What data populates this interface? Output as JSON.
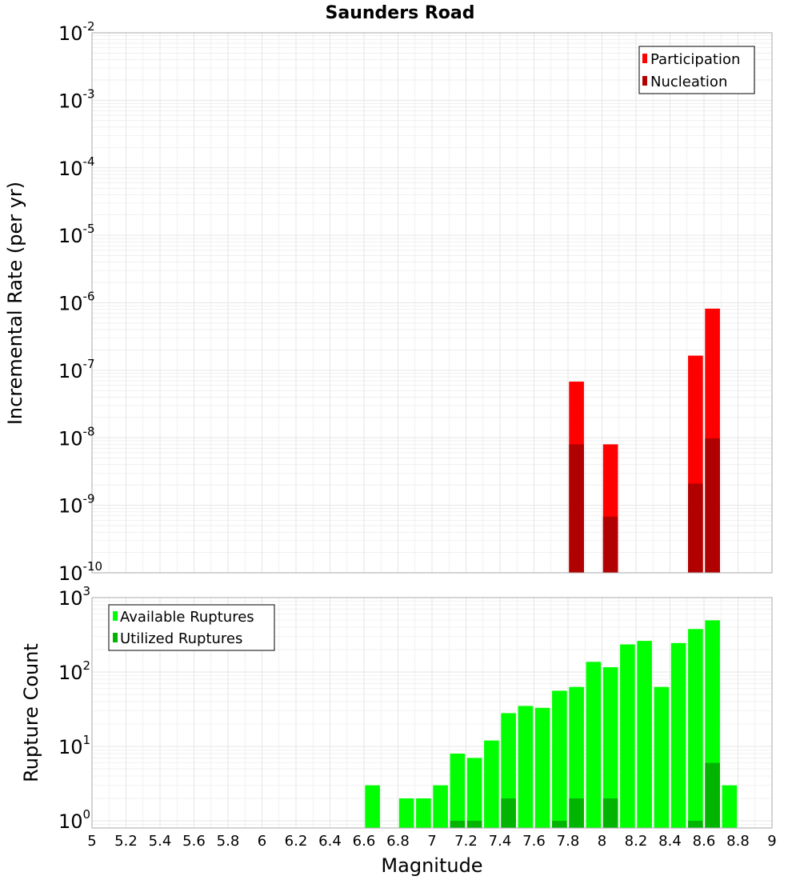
{
  "title": "Saunders Road",
  "colors": {
    "participation": "#ff0000",
    "nucleation": "#b00000",
    "available": "#00ff00",
    "utilized": "#00b400",
    "grid": "#e6e6e6",
    "frame": "#aaaaaa"
  },
  "chart_data": [
    {
      "type": "bar",
      "scale": "log",
      "ylabel": "Incremental Rate (per yr)",
      "ylim": [
        1e-10,
        0.01
      ],
      "y_ticks": [
        {
          "base": "10",
          "exp": "-10"
        },
        {
          "base": "10",
          "exp": "-9"
        },
        {
          "base": "10",
          "exp": "-8"
        },
        {
          "base": "10",
          "exp": "-7"
        },
        {
          "base": "10",
          "exp": "-6"
        },
        {
          "base": "10",
          "exp": "-5"
        },
        {
          "base": "10",
          "exp": "-4"
        },
        {
          "base": "10",
          "exp": "-3"
        },
        {
          "base": "10",
          "exp": "-2"
        }
      ],
      "legend": {
        "placement": "top-right",
        "items": [
          {
            "label": "Participation",
            "color": "#ff0000"
          },
          {
            "label": "Nucleation",
            "color": "#b00000"
          }
        ]
      },
      "series": [
        {
          "name": "Participation",
          "x": [
            7.85,
            8.05,
            8.55,
            8.65
          ],
          "values": [
            6.8e-08,
            8e-09,
            1.65e-07,
            8.2e-07
          ]
        },
        {
          "name": "Nucleation",
          "x": [
            7.85,
            8.05,
            8.55,
            8.65
          ],
          "values": [
            8e-09,
            6.8e-10,
            2.1e-09,
            9.8e-09
          ]
        }
      ]
    },
    {
      "type": "bar",
      "scale": "log",
      "ylabel": "Rupture Count",
      "xlabel": "Magnitude",
      "ylim": [
        0.8,
        1000
      ],
      "xlim": [
        5,
        9
      ],
      "x_ticks": [
        "5",
        "5.2",
        "5.4",
        "5.6",
        "5.8",
        "6",
        "6.2",
        "6.4",
        "6.6",
        "6.8",
        "7",
        "7.2",
        "7.4",
        "7.6",
        "7.8",
        "8",
        "8.2",
        "8.4",
        "8.6",
        "8.8",
        "9"
      ],
      "y_ticks": [
        {
          "base": "10",
          "exp": "0"
        },
        {
          "base": "10",
          "exp": "1"
        },
        {
          "base": "10",
          "exp": "2"
        },
        {
          "base": "10",
          "exp": "3"
        }
      ],
      "legend": {
        "placement": "top-left",
        "items": [
          {
            "label": "Available Ruptures",
            "color": "#00ff00"
          },
          {
            "label": "Utilized Ruptures",
            "color": "#00b400"
          }
        ]
      },
      "series": [
        {
          "name": "Available Ruptures",
          "x": [
            6.65,
            6.85,
            6.95,
            7.05,
            7.15,
            7.25,
            7.35,
            7.45,
            7.55,
            7.65,
            7.75,
            7.85,
            7.95,
            8.05,
            8.15,
            8.25,
            8.35,
            8.45,
            8.55,
            8.65,
            8.75
          ],
          "values": [
            3,
            2,
            2,
            3,
            8,
            7,
            12,
            28,
            35,
            33,
            56,
            63,
            137,
            116,
            235,
            262,
            63,
            245,
            378,
            495,
            3
          ]
        },
        {
          "name": "Utilized Ruptures",
          "x": [
            7.15,
            7.25,
            7.45,
            7.75,
            7.85,
            8.05,
            8.55,
            8.65
          ],
          "values": [
            1,
            1,
            2,
            1,
            2,
            2,
            1,
            6
          ]
        }
      ]
    }
  ]
}
